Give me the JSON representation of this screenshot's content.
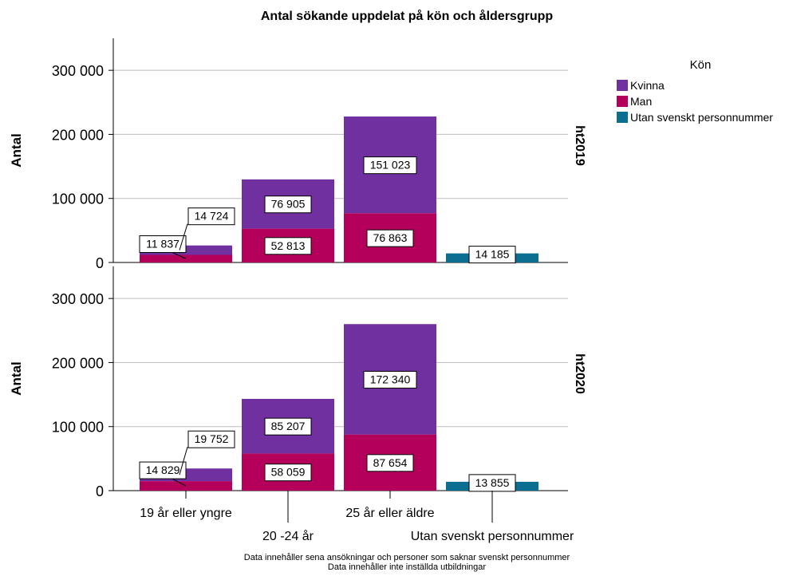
{
  "colors": {
    "Kvinna": "#7030a0",
    "Man": "#b5005b",
    "Utan svenskt personnummer": "#0c6e91"
  },
  "chart_data": {
    "type": "bar",
    "stacked": true,
    "title": "Antal sökande uppdelat på kön och åldersgrupp",
    "ylabel": "Antal",
    "ylim": [
      0,
      350000
    ],
    "yticks": [
      0,
      100000,
      200000,
      300000
    ],
    "ytick_labels": [
      "0",
      "100 000",
      "200 000",
      "300 000"
    ],
    "grid": true,
    "categories": [
      "19 år eller yngre",
      "20 -24 år",
      "25 år eller äldre",
      "Utan svenskt personnummer"
    ],
    "legend": {
      "title": "Kön",
      "position": "top-right",
      "entries": [
        "Kvinna",
        "Man",
        "Utan svenskt personnummer"
      ]
    },
    "panels": [
      {
        "label": "ht2019",
        "series": [
          {
            "name": "Man",
            "values": [
              11837,
              52813,
              76863,
              0
            ],
            "labels": [
              "11 837",
              "52 813",
              "76 863",
              ""
            ]
          },
          {
            "name": "Kvinna",
            "values": [
              14724,
              76905,
              151023,
              0
            ],
            "labels": [
              "14 724",
              "76 905",
              "151 023",
              ""
            ]
          },
          {
            "name": "Utan svenskt personnummer",
            "values": [
              0,
              0,
              0,
              14185
            ],
            "labels": [
              "",
              "",
              "",
              "14 185"
            ]
          }
        ]
      },
      {
        "label": "ht2020",
        "series": [
          {
            "name": "Man",
            "values": [
              14829,
              58059,
              87654,
              0
            ],
            "labels": [
              "14 829",
              "58 059",
              "87 654",
              ""
            ]
          },
          {
            "name": "Kvinna",
            "values": [
              19752,
              85207,
              172340,
              0
            ],
            "labels": [
              "19 752",
              "85 207",
              "172 340",
              ""
            ]
          },
          {
            "name": "Utan svenskt personnummer",
            "values": [
              0,
              0,
              0,
              13855
            ],
            "labels": [
              "",
              "",
              "",
              "13 855"
            ]
          }
        ]
      }
    ],
    "footnotes": [
      "Data innehåller sena ansökningar och personer som saknar svenskt personnummer",
      "Data innehåller inte inställda utbildningar"
    ]
  }
}
